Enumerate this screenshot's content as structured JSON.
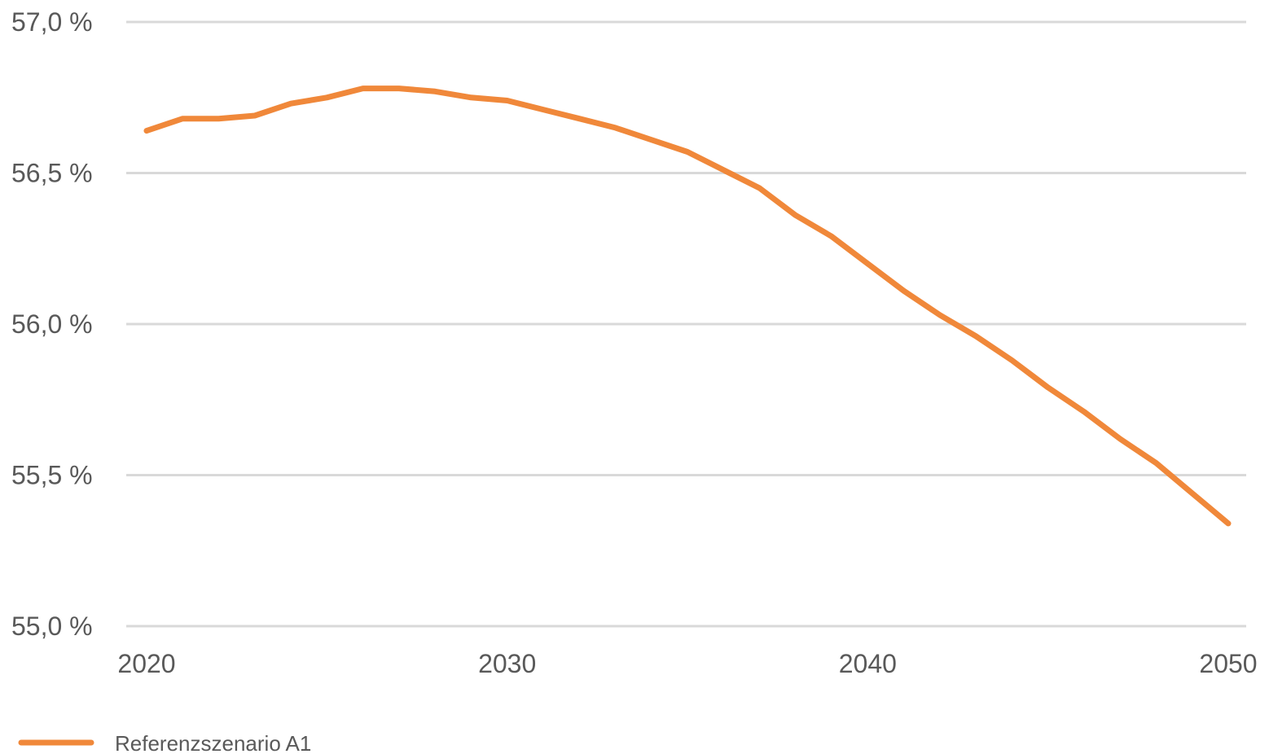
{
  "chart_data": {
    "type": "line",
    "title": "",
    "xlabel": "",
    "ylabel": "",
    "xlim": [
      2020,
      2050
    ],
    "ylim": [
      55.0,
      57.0
    ],
    "x_ticks": [
      2020,
      2030,
      2040,
      2050
    ],
    "x_tick_labels": [
      "2020",
      "2030",
      "2040",
      "2050"
    ],
    "y_ticks": [
      55.0,
      55.5,
      56.0,
      56.5,
      57.0
    ],
    "y_tick_labels": [
      "55,0 %",
      "55,5 %",
      "56,0 %",
      "56,5 %",
      "57,0 %"
    ],
    "grid": "horizontal",
    "legend_position": "bottom-left",
    "series": [
      {
        "name": "Referenzszenario A1",
        "color": "#F0883A",
        "x": [
          2020,
          2021,
          2022,
          2023,
          2024,
          2025,
          2026,
          2027,
          2028,
          2029,
          2030,
          2031,
          2032,
          2033,
          2034,
          2035,
          2036,
          2037,
          2038,
          2039,
          2040,
          2041,
          2042,
          2043,
          2044,
          2045,
          2046,
          2047,
          2048,
          2049,
          2050
        ],
        "values": [
          56.64,
          56.68,
          56.68,
          56.69,
          56.73,
          56.75,
          56.78,
          56.78,
          56.77,
          56.75,
          56.74,
          56.71,
          56.68,
          56.65,
          56.61,
          56.57,
          56.51,
          56.45,
          56.36,
          56.29,
          56.2,
          56.11,
          56.03,
          55.96,
          55.88,
          55.79,
          55.71,
          55.62,
          55.54,
          55.44,
          55.34
        ]
      }
    ]
  }
}
